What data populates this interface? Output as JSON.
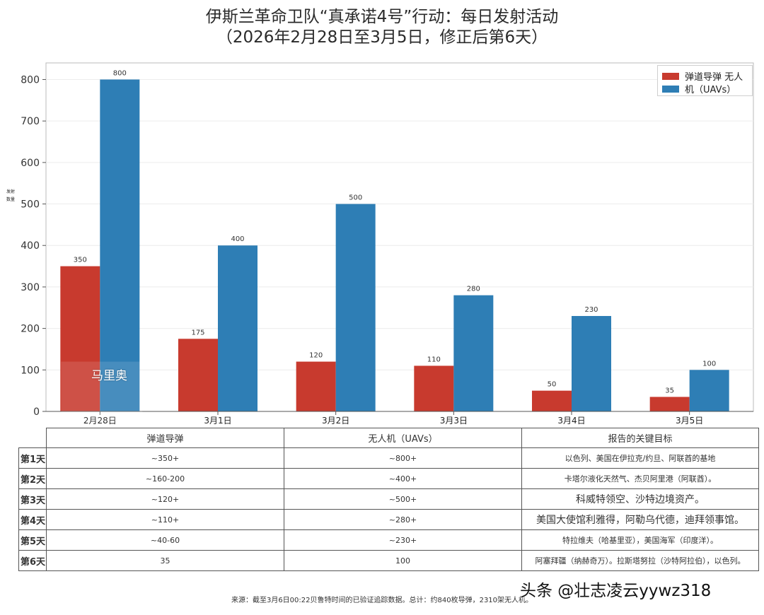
{
  "title_line1": "伊斯兰革命卫队“真承诺4号”行动：每日发射活动",
  "title_line2": "（2026年2月28日至3月5日，修正后第6天）",
  "chart_data": {
    "type": "bar",
    "categories": [
      "2月28日",
      "3月1日",
      "3月2日",
      "3月3日",
      "3月4日",
      "3月5日"
    ],
    "series": [
      {
        "name": "弹道导弹 无人",
        "color": "#c83a2e",
        "values": [
          350,
          175,
          120,
          110,
          50,
          35
        ]
      },
      {
        "name": "机（UAVs）",
        "color": "#2e7eb5",
        "values": [
          800,
          400,
          500,
          280,
          230,
          100
        ]
      }
    ],
    "ylabel": "发射数量",
    "ylim": [
      0,
      840
    ],
    "yticks": [
      0,
      100,
      200,
      300,
      400,
      500,
      600,
      700,
      800
    ],
    "grid": true,
    "legend_position": "top-right"
  },
  "watermark_box_text": "马里奥",
  "table": {
    "headers": [
      "弹道导弹",
      "无人机（UAVs）",
      "报告的关键目标"
    ],
    "rows": [
      {
        "day": "第1天",
        "missiles": "~350+",
        "uavs": "~800+",
        "targets": "以色列、美国在伊拉克/约旦、阿联酋的基地"
      },
      {
        "day": "第2天",
        "missiles": "~160-200",
        "uavs": "~400+",
        "targets": "卡塔尔液化天然气、杰贝阿里港（阿联酋）。"
      },
      {
        "day": "第3天",
        "missiles": "~120+",
        "uavs": "~500+",
        "targets": "科威特领空、沙特边境资产。"
      },
      {
        "day": "第4天",
        "missiles": "~110+",
        "uavs": "~280+",
        "targets": "美国大使馆利雅得，阿勒乌代德，迪拜领事馆。"
      },
      {
        "day": "第5天",
        "missiles": "~40-60",
        "uavs": "~230+",
        "targets": "特拉维夫（哈基里亚），美国海军（印度洋）。"
      },
      {
        "day": "第6天",
        "missiles": "35",
        "uavs": "100",
        "targets": "阿塞拜疆（纳赫奇万）。拉斯塔努拉（沙特阿拉伯），以色列。"
      }
    ]
  },
  "source_note": "来源：截至3月6日00:22贝鲁特时间的已验证追踪数据。总计：约840枚导弹，2310架无人机。",
  "overlay_tag": "头条 @壮志凌云yywz318"
}
